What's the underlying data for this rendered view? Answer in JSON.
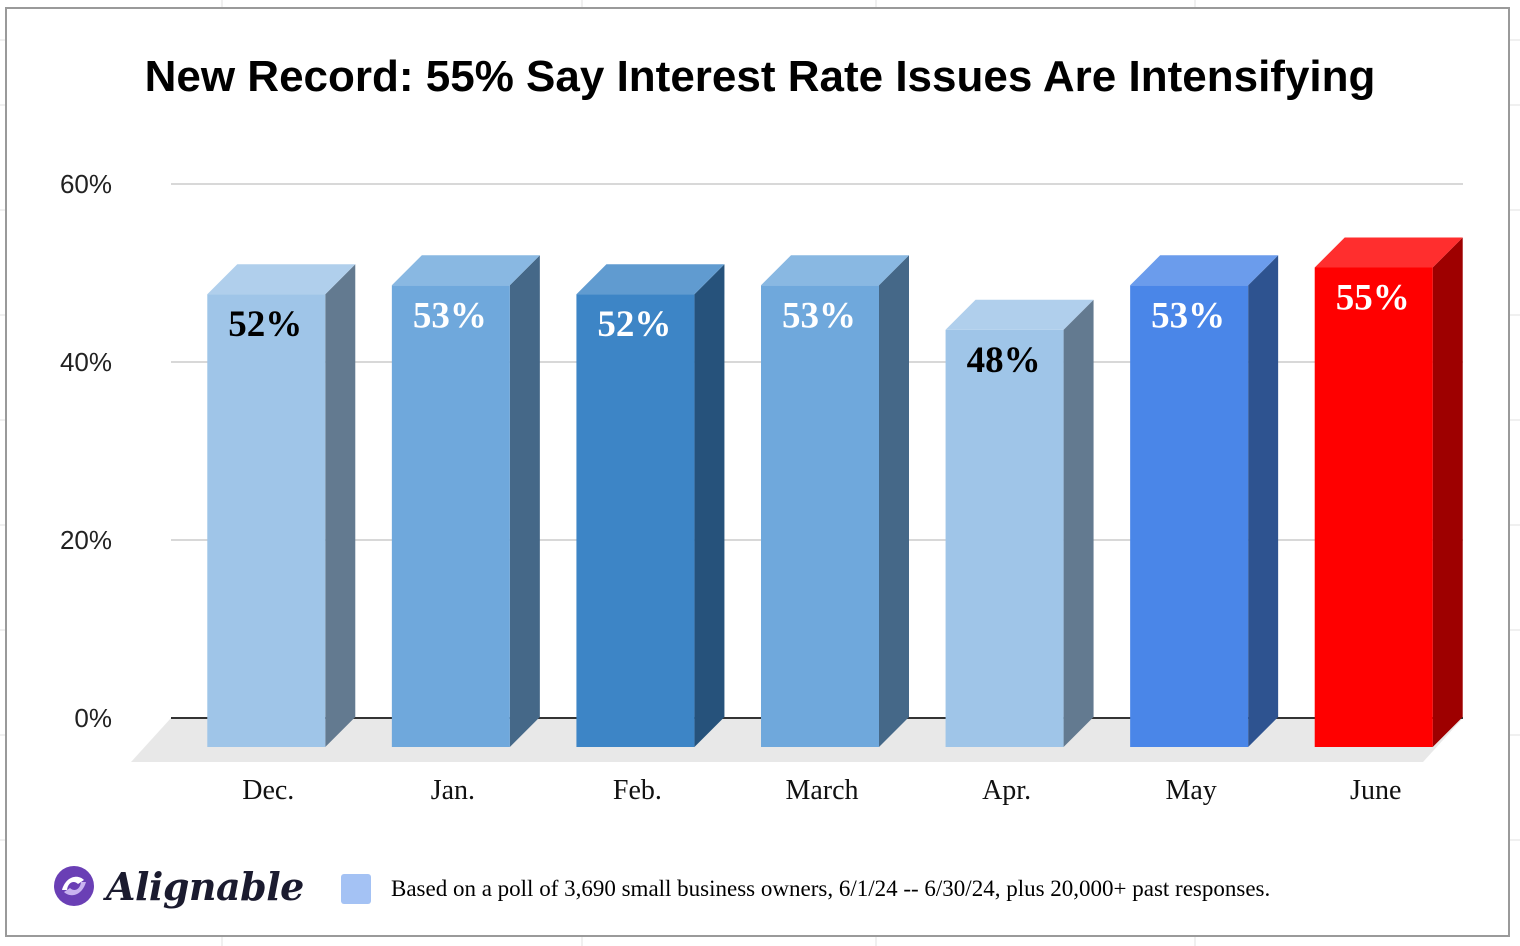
{
  "chart_data": {
    "type": "bar",
    "title": "New Record: 55% Say Interest Rate Issues Are Intensifying",
    "xlabel": "",
    "ylabel": "",
    "ylim": [
      0,
      60
    ],
    "yticks": [
      0,
      20,
      40,
      60
    ],
    "ytick_labels": [
      "0%",
      "20%",
      "40%",
      "60%"
    ],
    "grid": true,
    "style": "3d-column",
    "categories": [
      "Dec.",
      "Jan.",
      "Feb.",
      "March",
      "Apr.",
      "May",
      "June"
    ],
    "values": [
      52,
      53,
      52,
      53,
      48,
      53,
      55
    ],
    "data_labels": [
      "52%",
      "53%",
      "52%",
      "53%",
      "48%",
      "53%",
      "55%"
    ],
    "bar_colors": [
      "#9fc5e8",
      "#6fa8dc",
      "#3d85c6",
      "#6fa8dc",
      "#9fc5e8",
      "#4a86e8",
      "#ff0000"
    ],
    "label_colors": [
      "#000000",
      "#ffffff",
      "#ffffff",
      "#ffffff",
      "#000000",
      "#ffffff",
      "#ffffff"
    ]
  },
  "legend": {
    "swatch_color": "#a4c2f4",
    "text": "Based on a poll of 3,690 small business owners, 6/1/24 -- 6/30/24, plus 20,000+ past responses."
  },
  "brand": {
    "name": "Alignable",
    "logo_color": "#6a3fb5",
    "icon": "alignable-logo-icon"
  }
}
